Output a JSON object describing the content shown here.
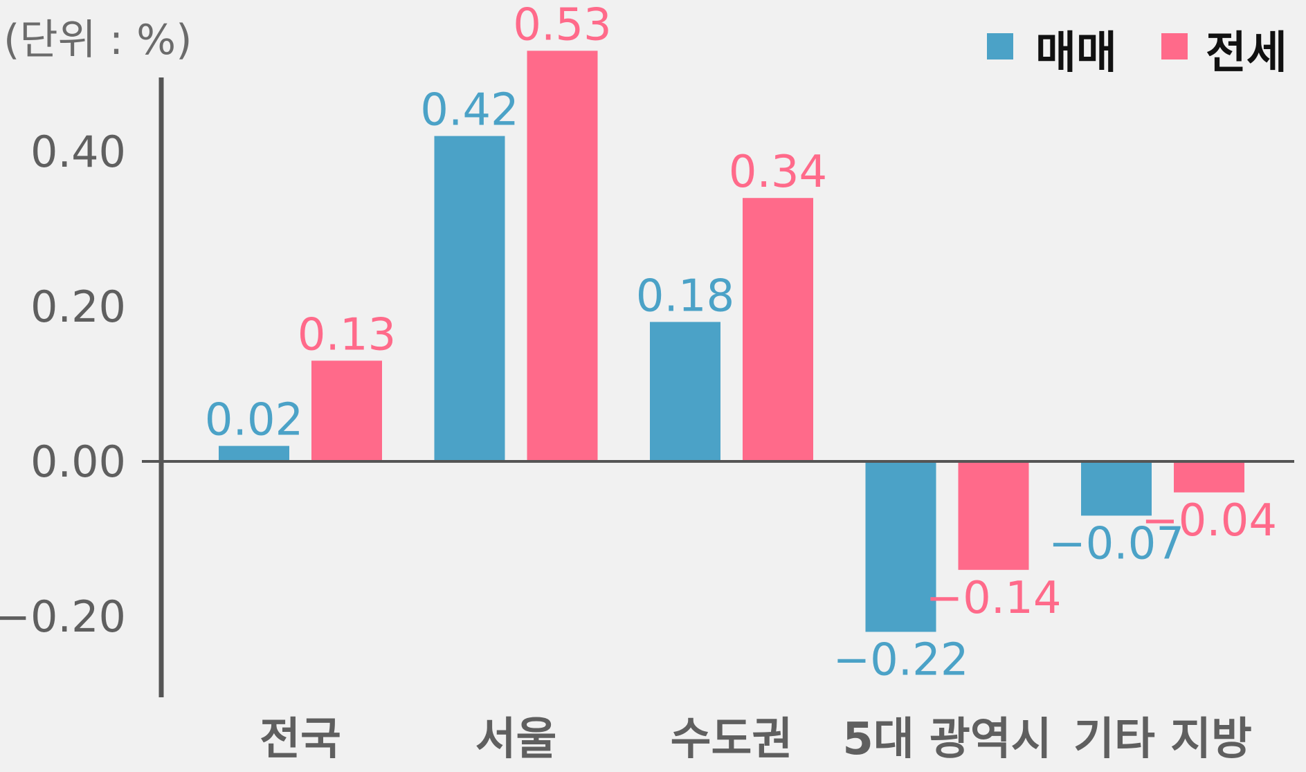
{
  "chart_data": {
    "type": "bar",
    "unit_label": "(단위 : %)",
    "title": "",
    "xlabel": "",
    "ylabel": "",
    "categories": [
      "전국",
      "서울",
      "수도권",
      "5대 광역시",
      "기타 지방"
    ],
    "series": [
      {
        "name": "매매",
        "color": "#4ba2c7",
        "values": [
          0.02,
          0.42,
          0.18,
          -0.22,
          -0.07
        ]
      },
      {
        "name": "전세",
        "color": "#ff6a8a",
        "values": [
          0.13,
          0.53,
          0.34,
          -0.14,
          -0.04
        ]
      }
    ],
    "value_labels": [
      [
        "0.02",
        "0.42",
        "0.18",
        "−0.22",
        "−0.07"
      ],
      [
        "0.13",
        "0.53",
        "0.34",
        "−0.14",
        "−0.04"
      ]
    ],
    "yticks": [
      0.4,
      0.2,
      0.0,
      -0.2
    ],
    "ytick_labels": [
      "0.40",
      "0.20",
      "0.00",
      "−0.20"
    ],
    "ylim": [
      -0.29,
      0.48
    ],
    "grid": false,
    "legend_position": "top-right"
  }
}
